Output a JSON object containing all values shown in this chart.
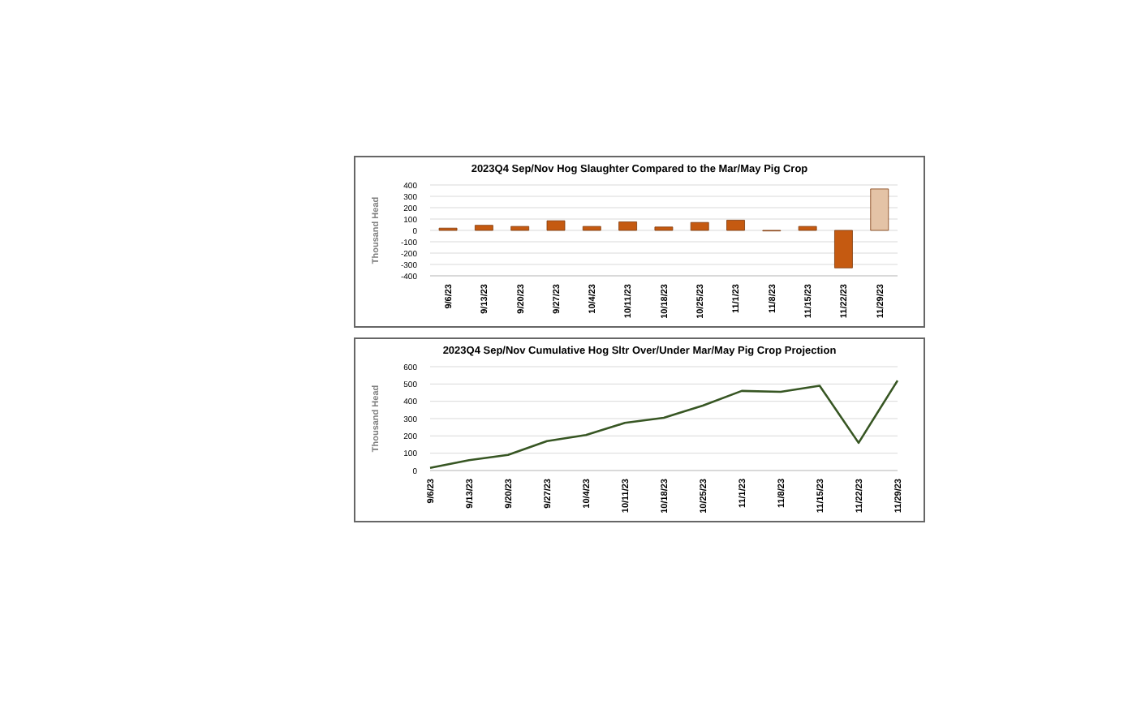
{
  "chart_data": [
    {
      "type": "bar",
      "title": "2023Q4 Sep/Nov Hog Slaughter Compared to the Mar/May Pig Crop",
      "ylabel": "Thousand Head",
      "categories": [
        "9/6/23",
        "9/13/23",
        "9/20/23",
        "9/27/23",
        "10/4/23",
        "10/11/23",
        "10/18/23",
        "10/25/23",
        "11/1/23",
        "11/8/23",
        "11/15/23",
        "11/22/23",
        "11/29/23"
      ],
      "values": [
        20,
        45,
        35,
        85,
        35,
        75,
        30,
        70,
        90,
        -5,
        35,
        -330,
        365
      ],
      "colors": [
        "#c55a11",
        "#c55a11",
        "#c55a11",
        "#c55a11",
        "#c55a11",
        "#c55a11",
        "#c55a11",
        "#c55a11",
        "#c55a11",
        "#c55a11",
        "#c55a11",
        "#c55a11",
        "#e4c3a6"
      ],
      "ylim": [
        -400,
        400
      ],
      "yticks": [
        -400,
        -300,
        -200,
        -100,
        0,
        100,
        200,
        300,
        400
      ],
      "grid": "y",
      "legend": false
    },
    {
      "type": "line",
      "title": "2023Q4 Sep/Nov Cumulative Hog Sltr Over/Under Mar/May Pig Crop Projection",
      "ylabel": "Thousand Head",
      "categories": [
        "9/6/23",
        "9/13/23",
        "9/20/23",
        "9/27/23",
        "10/4/23",
        "10/11/23",
        "10/18/23",
        "10/25/23",
        "11/1/23",
        "11/8/23",
        "11/15/23",
        "11/22/23",
        "11/29/23"
      ],
      "series": [
        {
          "color": "#375623",
          "values": [
            15,
            60,
            90,
            170,
            205,
            275,
            305,
            375,
            460,
            455,
            490,
            160,
            520
          ]
        }
      ],
      "ylim": [
        0,
        600
      ],
      "yticks": [
        0,
        100,
        200,
        300,
        400,
        500,
        600
      ],
      "grid": "y",
      "legend": false,
      "marker": "none"
    }
  ]
}
